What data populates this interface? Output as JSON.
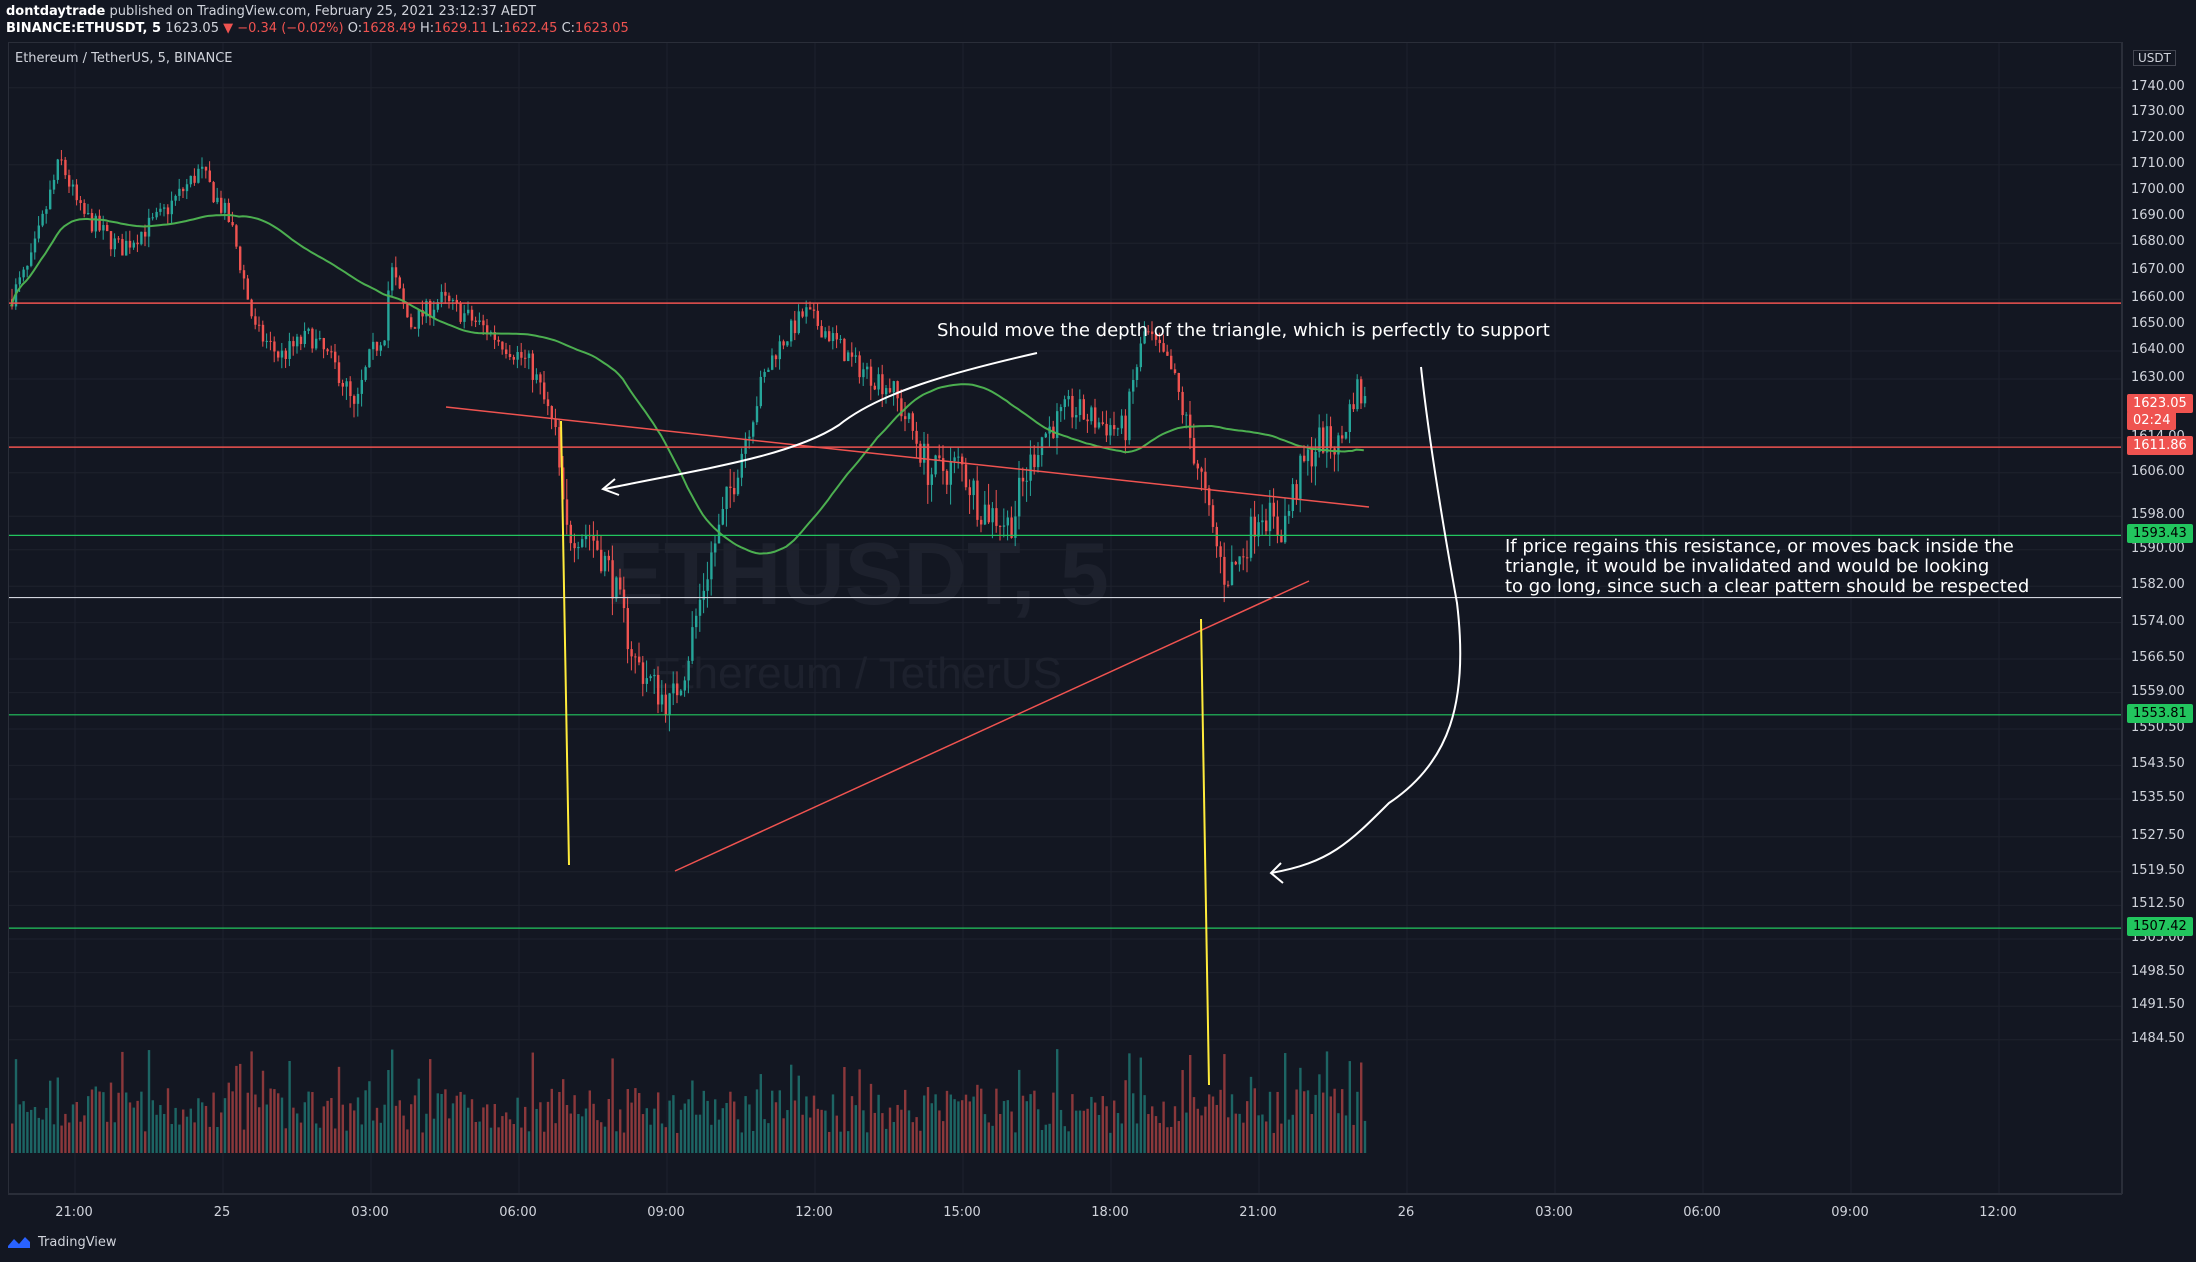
{
  "header": {
    "author": "dontdaytrade",
    "published_text": "published on TradingView.com, February 25, 2021 23:12:37 AEDT",
    "symbol": "BINANCE:ETHUSDT, 5",
    "last": "1623.05",
    "change": "▼ −0.34 (−0.02%)",
    "o_label": "O:",
    "o_value": "1628.49",
    "h_label": "H:",
    "h_value": "1629.11",
    "l_label": "L:",
    "l_value": "1622.45",
    "c_label": "C:",
    "c_value": "1623.05"
  },
  "legend": {
    "title": "Ethereum / TetherUS, 5, BINANCE"
  },
  "watermark": {
    "main": "ETHUSDT, 5",
    "sub": "Ethereum / TetherUS"
  },
  "annotations": {
    "top_note": "Should move the depth of the triangle, which is perfectly to support",
    "side_note": "If price regains this resistance, or moves back inside the\ntriangle, it would be invalidated and would be looking\nto go long, since such a clear pattern should be respected"
  },
  "price_axis": {
    "currency": "USDT",
    "ticks": [
      "1740.00",
      "1730.00",
      "1720.00",
      "1710.00",
      "1700.00",
      "1690.00",
      "1680.00",
      "1670.00",
      "1660.00",
      "1650.00",
      "1640.00",
      "1630.00",
      "1614.00",
      "1606.00",
      "1598.00",
      "1590.00",
      "1582.00",
      "1574.00",
      "1566.50",
      "1559.00",
      "1550.50",
      "1543.50",
      "1535.50",
      "1527.50",
      "1519.50",
      "1512.50",
      "1505.00",
      "1498.50",
      "1491.50",
      "1484.50"
    ],
    "labels": [
      {
        "text": "1623.05",
        "price": 1623.05,
        "color": "#ef5350"
      },
      {
        "text": "02:24",
        "price": 1618.2,
        "color": "#ef5350"
      },
      {
        "text": "1611.86",
        "price": 1611.86,
        "color": "#ef5350"
      },
      {
        "text": "1593.43",
        "price": 1593.43,
        "color": "#22c55e"
      },
      {
        "text": "1553.81",
        "price": 1553.81,
        "color": "#22c55e"
      },
      {
        "text": "1507.42",
        "price": 1507.42,
        "color": "#22c55e"
      }
    ]
  },
  "time_axis": {
    "ticks": [
      "21:00",
      "25",
      "03:00",
      "06:00",
      "09:00",
      "12:00",
      "15:00",
      "18:00",
      "21:00",
      "26",
      "03:00",
      "06:00",
      "09:00",
      "12:00"
    ]
  },
  "levels": {
    "resistance": 1658.5,
    "red_line": 1611.86,
    "green_1": 1593.43,
    "white_line": 1579.5,
    "green_2": 1553.81,
    "green_3": 1507.42
  },
  "chart_data": {
    "type": "candlestick",
    "symbol": "ETHUSDT",
    "interval": "5",
    "ylim": [
      1480,
      1750
    ],
    "key_prices": [
      1623.05,
      1611.86,
      1593.43,
      1553.81,
      1507.42
    ],
    "series": [
      {
        "name": "ETHUSDT, 5",
        "type": "candlestick"
      },
      {
        "name": "",
        "type": "line",
        "color": "#4caf50"
      },
      {
        "name": "",
        "type": "volume"
      }
    ]
  },
  "footer": {
    "brand": "TradingView"
  }
}
